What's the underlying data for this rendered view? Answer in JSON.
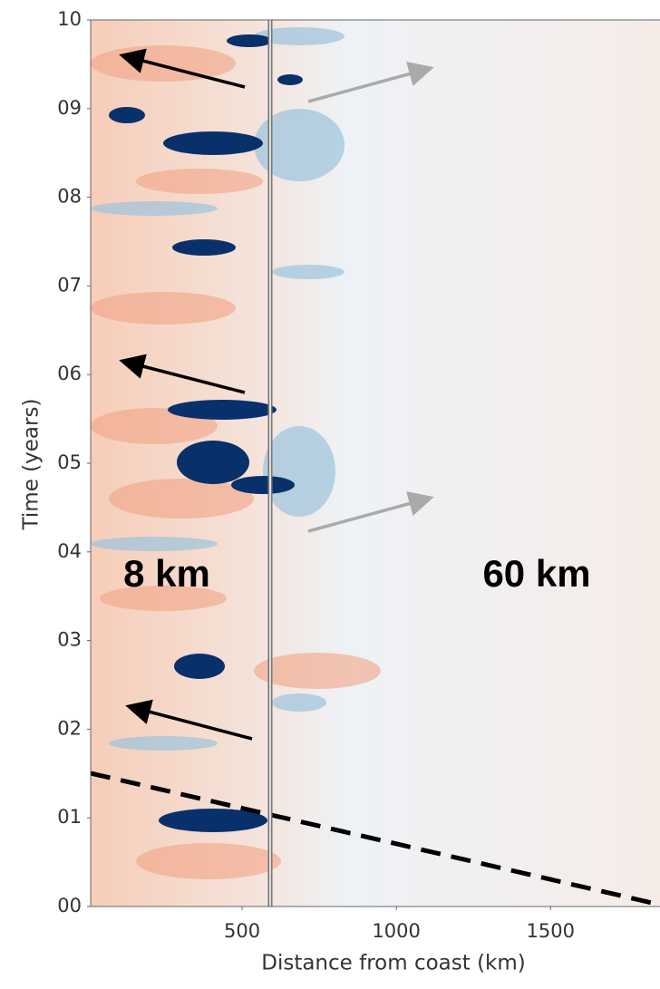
{
  "chart_data": {
    "type": "heatmap",
    "xlabel": "Distance from coast (km)",
    "ylabel": "Time (years)",
    "xlim": [
      0,
      1855
    ],
    "ylim": [
      0,
      10
    ],
    "xticks": [
      500,
      1000,
      1500
    ],
    "yticks": [
      {
        "value": 0,
        "label": "00"
      },
      {
        "value": 1,
        "label": "01"
      },
      {
        "value": 2,
        "label": "02"
      },
      {
        "value": 3,
        "label": "03"
      },
      {
        "value": 4,
        "label": "04"
      },
      {
        "value": 5,
        "label": "05"
      },
      {
        "value": 6,
        "label": "06"
      },
      {
        "value": 7,
        "label": "07"
      },
      {
        "value": 8,
        "label": "08"
      },
      {
        "value": 9,
        "label": "09"
      },
      10
    ],
    "annotations": [
      "8 km",
      "60 km"
    ]
  }
}
